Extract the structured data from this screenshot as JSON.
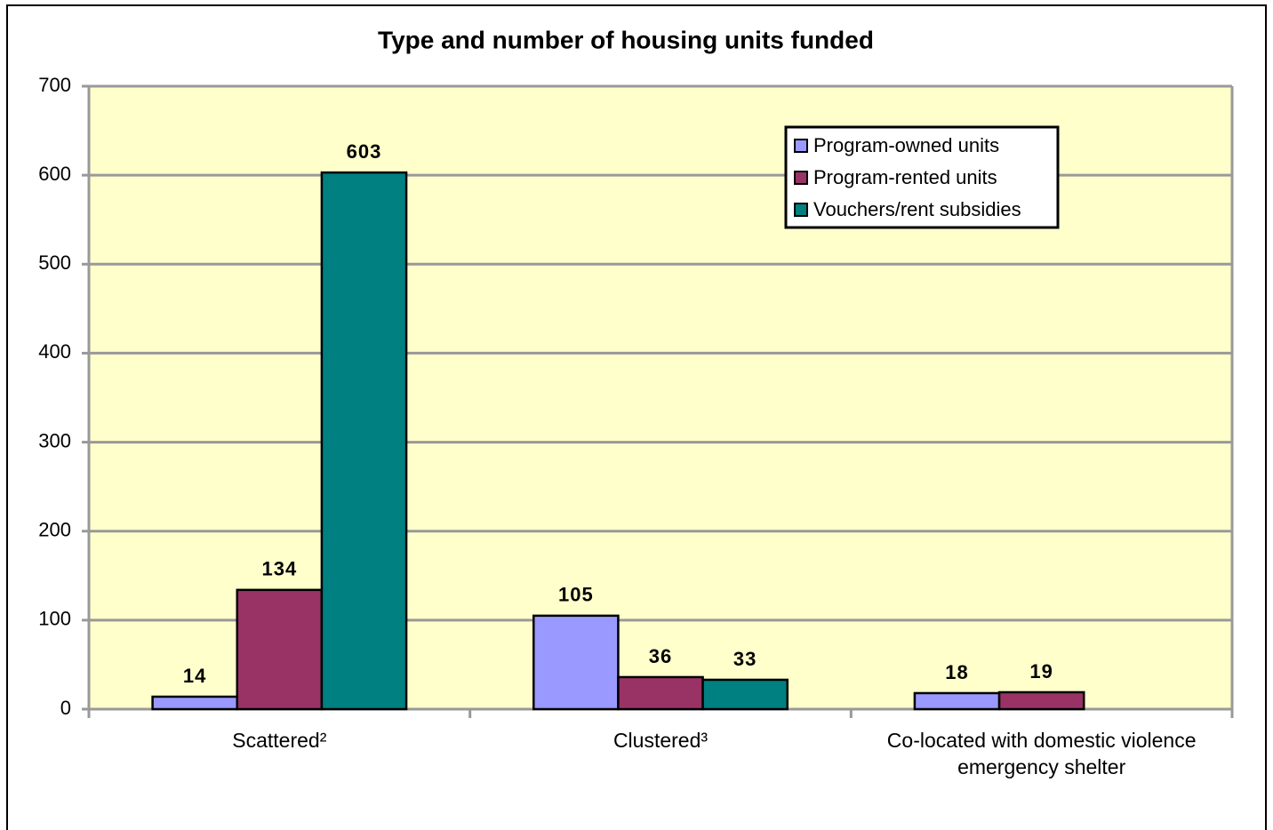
{
  "chart_data": {
    "type": "bar",
    "title": "Type and number of housing units funded",
    "categories": [
      "Scattered²",
      "Clustered³",
      "Co-located with domestic violence emergency shelter"
    ],
    "series": [
      {
        "name": "Program-owned units",
        "color": "#9999ff",
        "values": [
          14,
          105,
          18
        ]
      },
      {
        "name": "Program-rented units",
        "color": "#993366",
        "values": [
          134,
          36,
          19
        ]
      },
      {
        "name": "Vouchers/rent subsidies",
        "color": "#008080",
        "values": [
          603,
          33,
          null
        ]
      }
    ],
    "ylim": [
      0,
      700
    ],
    "yticks": [
      0,
      100,
      200,
      300,
      400,
      500,
      600,
      700
    ],
    "grid": true,
    "legend": "top-right",
    "plot_background": "#ffffcc"
  }
}
